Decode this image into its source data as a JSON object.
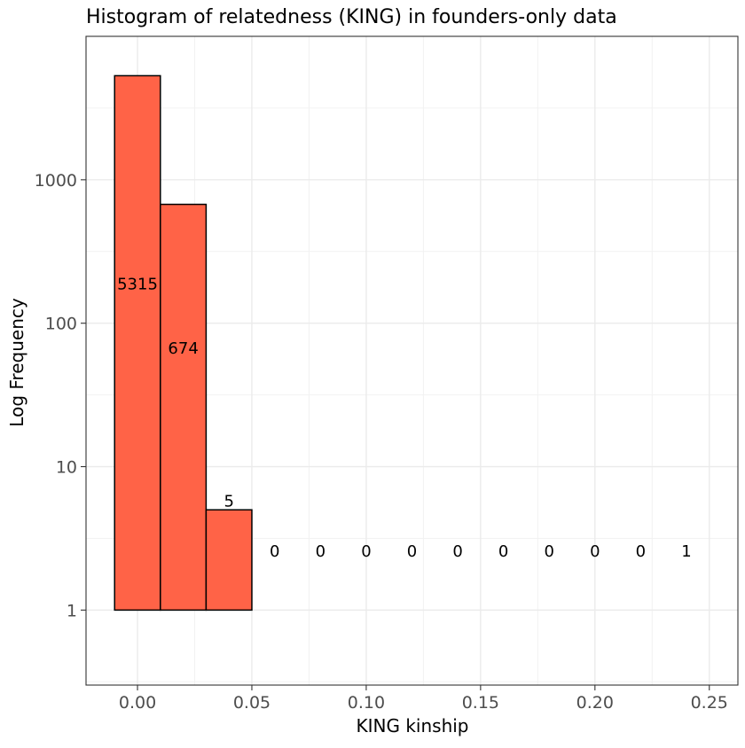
{
  "chart_data": {
    "type": "bar",
    "title": "Histogram of relatedness (KING) in founders-only data",
    "xlabel": "KING kinship",
    "ylabel": "Log Frequency",
    "y_scale": "log10",
    "grid": true,
    "xlim": [
      -0.0225,
      0.2625
    ],
    "ylim": [
      0.3,
      10000
    ],
    "x_ticks": [
      0.0,
      0.05,
      0.1,
      0.15,
      0.2,
      0.25
    ],
    "x_tick_labels": [
      "0.00",
      "0.05",
      "0.10",
      "0.15",
      "0.20",
      "0.25"
    ],
    "y_ticks": [
      1,
      10,
      100,
      1000
    ],
    "y_tick_labels": [
      "1",
      "10",
      "100",
      "1000"
    ],
    "bins": [
      {
        "x0": -0.01,
        "x1": 0.01,
        "count": 5315,
        "label": "5315"
      },
      {
        "x0": 0.01,
        "x1": 0.03,
        "count": 674,
        "label": "674"
      },
      {
        "x0": 0.03,
        "x1": 0.05,
        "count": 5,
        "label": "5"
      },
      {
        "x0": 0.05,
        "x1": 0.07,
        "count": 0,
        "label": "0"
      },
      {
        "x0": 0.07,
        "x1": 0.09,
        "count": 0,
        "label": "0"
      },
      {
        "x0": 0.09,
        "x1": 0.11,
        "count": 0,
        "label": "0"
      },
      {
        "x0": 0.11,
        "x1": 0.13,
        "count": 0,
        "label": "0"
      },
      {
        "x0": 0.13,
        "x1": 0.15,
        "count": 0,
        "label": "0"
      },
      {
        "x0": 0.15,
        "x1": 0.17,
        "count": 0,
        "label": "0"
      },
      {
        "x0": 0.17,
        "x1": 0.19,
        "count": 0,
        "label": "0"
      },
      {
        "x0": 0.19,
        "x1": 0.21,
        "count": 0,
        "label": "0"
      },
      {
        "x0": 0.21,
        "x1": 0.23,
        "count": 0,
        "label": "0"
      },
      {
        "x0": 0.23,
        "x1": 0.25,
        "count": 1,
        "label": "1"
      }
    ],
    "colors": {
      "bar_fill": "#FF6347",
      "bar_outline": "#000000",
      "grid_major": "#EBEBEB",
      "grid_minor": "#F2F2F2",
      "panel_border": "#333333",
      "tick_label": "#4D4D4D"
    }
  }
}
